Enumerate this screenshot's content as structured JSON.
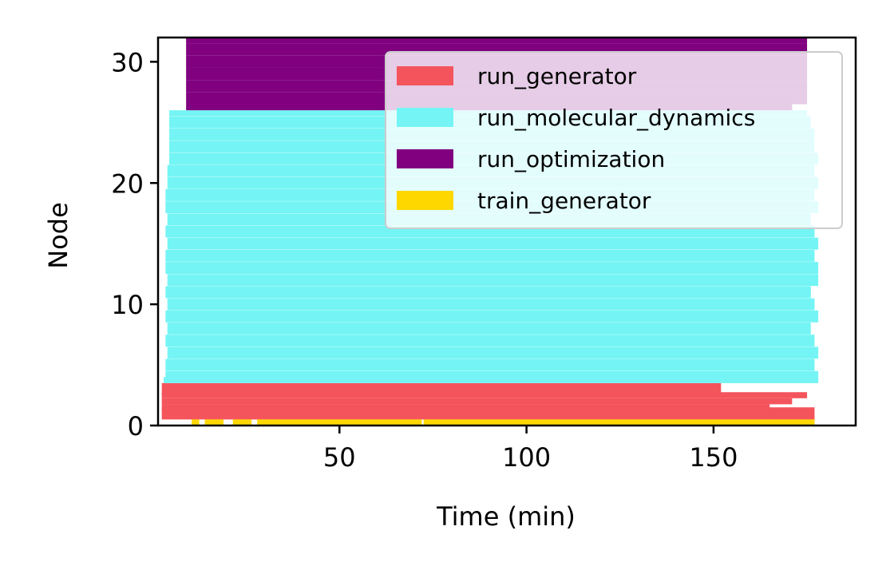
{
  "chart_data": {
    "type": "gantt",
    "xlabel": "Time (min)",
    "ylabel": "Node",
    "xlim": [
      1.5,
      188
    ],
    "ylim": [
      0,
      32
    ],
    "x_ticks": [
      50,
      100,
      150
    ],
    "y_ticks": [
      0,
      10,
      20,
      30
    ],
    "grid": false,
    "legend_position": "top-right",
    "series": [
      {
        "name": "run_generator",
        "color": "#f4545c",
        "node_range": [
          1,
          3
        ],
        "intervals": [
          {
            "node": 1,
            "start": 2.5,
            "end": 177
          },
          {
            "node": 1.5,
            "start": 2.5,
            "end": 165
          },
          {
            "node": 2,
            "start": 2.5,
            "end": 171
          },
          {
            "node": 2.5,
            "start": 2.5,
            "end": 175
          },
          {
            "node": 3,
            "start": 2.5,
            "end": 152
          }
        ]
      },
      {
        "name": "run_molecular_dynamics",
        "color": "#74f4f4",
        "node_range": [
          3.5,
          26
        ],
        "intervals": [
          {
            "node": 3.5,
            "start": 3,
            "end": 178
          },
          {
            "node": 4,
            "start": 3.5,
            "end": 178
          },
          {
            "node": 5,
            "start": 3.5,
            "end": 177
          },
          {
            "node": 6,
            "start": 4,
            "end": 178
          },
          {
            "node": 7,
            "start": 3.5,
            "end": 177
          },
          {
            "node": 8,
            "start": 4,
            "end": 176
          },
          {
            "node": 9,
            "start": 3.5,
            "end": 178
          },
          {
            "node": 10,
            "start": 4,
            "end": 177
          },
          {
            "node": 11,
            "start": 3.5,
            "end": 176
          },
          {
            "node": 12,
            "start": 4,
            "end": 178
          },
          {
            "node": 13,
            "start": 3.5,
            "end": 178
          },
          {
            "node": 14,
            "start": 3.5,
            "end": 177
          },
          {
            "node": 15,
            "start": 4,
            "end": 178
          },
          {
            "node": 16,
            "start": 3.5,
            "end": 177
          },
          {
            "node": 17,
            "start": 4,
            "end": 176
          },
          {
            "node": 18,
            "start": 3.5,
            "end": 178
          },
          {
            "node": 19,
            "start": 3.5,
            "end": 177
          },
          {
            "node": 20,
            "start": 4,
            "end": 178
          },
          {
            "node": 21,
            "start": 4,
            "end": 177
          },
          {
            "node": 22,
            "start": 4.5,
            "end": 178
          },
          {
            "node": 23,
            "start": 4.5,
            "end": 177
          },
          {
            "node": 24,
            "start": 4.5,
            "end": 177
          },
          {
            "node": 25,
            "start": 4.5,
            "end": 176
          },
          {
            "node": 26,
            "start": 4.5,
            "end": 175
          }
        ]
      },
      {
        "name": "run_optimization",
        "color": "#800080",
        "node_range": [
          26,
          32
        ],
        "intervals": [
          {
            "node": 26,
            "start": 9,
            "end": 171
          },
          {
            "node": 27,
            "start": 9,
            "end": 175
          },
          {
            "node": 28,
            "start": 9,
            "end": 175
          },
          {
            "node": 29,
            "start": 9,
            "end": 175
          },
          {
            "node": 30,
            "start": 9,
            "end": 175
          },
          {
            "node": 31,
            "start": 9,
            "end": 175
          },
          {
            "node": 32,
            "start": 9,
            "end": 175
          }
        ]
      },
      {
        "name": "train_generator",
        "color": "#ffd700",
        "node_range": [
          0,
          1
        ],
        "intervals": [
          {
            "node": 0,
            "start": 10.5,
            "end": 12.5
          },
          {
            "node": 0,
            "start": 14,
            "end": 19
          },
          {
            "node": 0,
            "start": 21.5,
            "end": 26.5
          },
          {
            "node": 0,
            "start": 28,
            "end": 72
          },
          {
            "node": 0,
            "start": 72.5,
            "end": 177
          }
        ]
      }
    ]
  }
}
